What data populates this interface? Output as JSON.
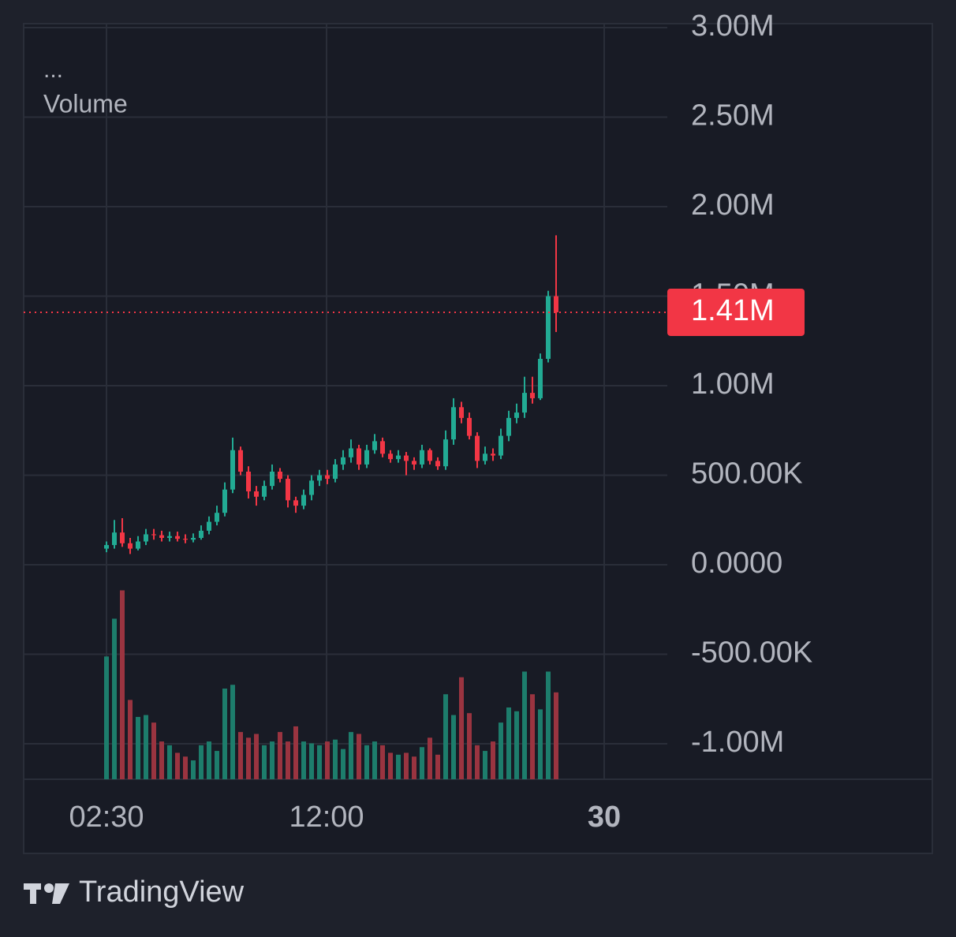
{
  "chart_data": {
    "type": "candlestick",
    "menu": "...",
    "indicator_label": "Volume",
    "brand": "TradingView",
    "x": [
      0,
      1,
      2,
      3,
      4,
      5,
      6,
      7,
      8,
      9,
      10,
      11,
      12,
      13,
      14,
      15,
      16,
      17,
      18,
      19,
      20,
      21,
      22,
      23,
      24,
      25,
      26,
      27,
      28,
      29,
      30,
      31,
      32,
      33,
      34,
      35,
      36,
      37,
      38,
      39,
      40,
      41,
      42,
      43,
      44,
      45,
      46,
      47,
      48,
      49,
      50,
      51,
      52,
      53,
      54,
      55,
      56,
      57
    ],
    "open": [
      90000,
      110000,
      180000,
      120000,
      90000,
      130000,
      170000,
      165000,
      150000,
      160000,
      145000,
      140000,
      150000,
      190000,
      240000,
      290000,
      420000,
      640000,
      520000,
      410000,
      380000,
      440000,
      520000,
      480000,
      360000,
      330000,
      390000,
      470000,
      500000,
      480000,
      560000,
      600000,
      650000,
      560000,
      640000,
      690000,
      620000,
      590000,
      610000,
      580000,
      560000,
      640000,
      580000,
      550000,
      700000,
      880000,
      820000,
      720000,
      580000,
      620000,
      610000,
      720000,
      820000,
      850000,
      960000,
      930000,
      1150000,
      1500000
    ],
    "close": [
      110000,
      180000,
      120000,
      90000,
      130000,
      170000,
      165000,
      150000,
      160000,
      145000,
      140000,
      150000,
      190000,
      240000,
      290000,
      420000,
      640000,
      520000,
      410000,
      380000,
      440000,
      520000,
      480000,
      360000,
      330000,
      390000,
      470000,
      500000,
      480000,
      560000,
      600000,
      650000,
      560000,
      640000,
      690000,
      620000,
      590000,
      610000,
      580000,
      560000,
      640000,
      580000,
      550000,
      700000,
      880000,
      820000,
      720000,
      580000,
      620000,
      610000,
      720000,
      820000,
      850000,
      960000,
      930000,
      1150000,
      1500000,
      1410000
    ],
    "high": [
      130000,
      250000,
      260000,
      150000,
      160000,
      200000,
      200000,
      190000,
      185000,
      185000,
      170000,
      175000,
      220000,
      270000,
      330000,
      460000,
      710000,
      660000,
      550000,
      440000,
      470000,
      560000,
      540000,
      500000,
      380000,
      420000,
      500000,
      530000,
      530000,
      590000,
      640000,
      700000,
      670000,
      670000,
      730000,
      710000,
      640000,
      640000,
      630000,
      600000,
      670000,
      650000,
      600000,
      750000,
      930000,
      910000,
      850000,
      740000,
      660000,
      650000,
      760000,
      860000,
      900000,
      1050000,
      1050000,
      1180000,
      1530000,
      1840000
    ],
    "low": [
      70000,
      90000,
      100000,
      60000,
      80000,
      110000,
      140000,
      130000,
      130000,
      130000,
      120000,
      125000,
      140000,
      170000,
      220000,
      270000,
      400000,
      500000,
      370000,
      330000,
      360000,
      420000,
      460000,
      320000,
      290000,
      310000,
      360000,
      440000,
      450000,
      460000,
      530000,
      570000,
      530000,
      540000,
      620000,
      600000,
      570000,
      570000,
      500000,
      530000,
      540000,
      560000,
      530000,
      530000,
      670000,
      790000,
      700000,
      540000,
      560000,
      580000,
      590000,
      690000,
      790000,
      820000,
      900000,
      920000,
      1130000,
      1300000
    ],
    "volume": [
      65,
      85,
      100,
      42,
      33,
      34,
      30,
      20,
      18,
      14,
      12,
      10,
      18,
      20,
      15,
      48,
      50,
      25,
      22,
      24,
      18,
      20,
      25,
      20,
      28,
      20,
      19,
      18,
      20,
      21,
      16,
      25,
      24,
      18,
      20,
      18,
      14,
      13,
      14,
      12,
      17,
      22,
      13,
      45,
      34,
      54,
      35,
      18,
      15,
      20,
      30,
      38,
      36,
      57,
      45,
      37,
      57,
      46
    ],
    "up_color": "#22ab94",
    "down_color": "#f23645",
    "volume_up_color": "#1d7d6c",
    "volume_down_color": "#9a3440",
    "xlim": [
      -10.5,
      71.1
    ],
    "xticks": [
      {
        "value": 0,
        "label": "02:30"
      },
      {
        "value": 27.9,
        "label": "12:00"
      },
      {
        "value": 63.1,
        "label": "30"
      }
    ],
    "ylim": [
      -1198000,
      3022000
    ],
    "yticks": [
      {
        "value": 3000000,
        "label": "3.00M"
      },
      {
        "value": 2500000,
        "label": "2.50M"
      },
      {
        "value": 2000000,
        "label": "2.00M"
      },
      {
        "value": 1500000,
        "label": "1.50M"
      },
      {
        "value": 1000000,
        "label": "1.00M"
      },
      {
        "value": 500000,
        "label": "500.00K"
      },
      {
        "value": 0,
        "label": "0.0000"
      },
      {
        "value": -500000,
        "label": "-500.00K"
      },
      {
        "value": -1000000,
        "label": "-1.00M"
      }
    ],
    "y2lim": [
      0,
      400
    ],
    "last_price": {
      "value": 1410000,
      "label": "1.41M"
    },
    "grid": true
  }
}
